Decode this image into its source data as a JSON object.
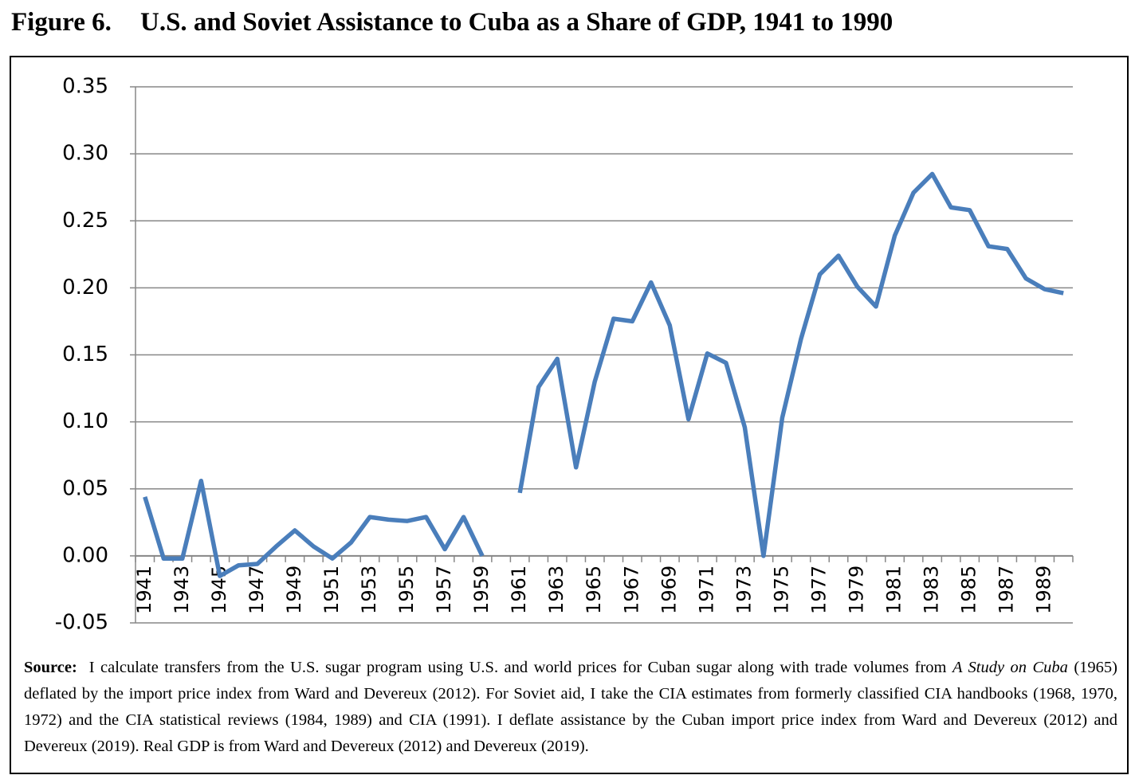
{
  "chart_data": {
    "type": "line",
    "figure_label": "Figure 6.",
    "title": "U.S. and Soviet Assistance to Cuba as a Share of GDP, 1941 to 1990",
    "categories": [
      "1941",
      null,
      "1943",
      null,
      "1945",
      null,
      "1947",
      null,
      "1949",
      null,
      "1951",
      null,
      "1953",
      null,
      "1955",
      null,
      "1957",
      null,
      "1959",
      null,
      "1961",
      null,
      "1963",
      null,
      "1965",
      null,
      "1967",
      null,
      "1969",
      null,
      "1971",
      null,
      "1973",
      null,
      "1975",
      null,
      "1977",
      null,
      "1979",
      null,
      "1981",
      null,
      "1983",
      null,
      "1985",
      null,
      "1987",
      null,
      "1989",
      null
    ],
    "series": [
      {
        "color": "#4a7ebb",
        "values": [
          0.044,
          -0.002,
          -0.002,
          0.056,
          -0.015,
          -0.007,
          -0.006,
          0.007,
          0.019,
          0.007,
          -0.002,
          0.01,
          0.029,
          0.027,
          0.026,
          0.029,
          0.005,
          0.029,
          0.0,
          null,
          0.047,
          0.126,
          0.147,
          0.066,
          0.13,
          0.177,
          0.175,
          0.204,
          0.172,
          0.102,
          0.151,
          0.144,
          0.096,
          0.0,
          0.103,
          0.162,
          0.21,
          0.224,
          0.201,
          0.186,
          0.239,
          0.271,
          0.285,
          0.26,
          0.258,
          0.231,
          0.229,
          0.207,
          0.199,
          0.196
        ]
      }
    ],
    "ylim": [
      -0.05,
      0.35
    ],
    "yticks": [
      -0.05,
      {
        "value": 0,
        "label": "0.00"
      },
      0.05,
      {
        "value": 0.1,
        "label": "0.10"
      },
      0.15,
      {
        "value": 0.2,
        "label": "0.20"
      },
      0.25,
      {
        "value": 0.3,
        "label": "0.30"
      },
      0.35
    ],
    "grid": true,
    "note": {
      "label": "Source:",
      "text_before": "I calculate transfers from the U.S. sugar program using U.S. and world prices for Cuban sugar along with trade volumes from ",
      "italic": "A Study on Cuba",
      "text_after": " (1965) deflated by the import price index from Ward and Devereux (2012). For Soviet aid, I take the CIA estimates from formerly classified CIA handbooks (1968, 1970, 1972) and the CIA statistical reviews (1984, 1989) and CIA (1991). I deflate assistance by the Cuban import price index from Ward and Devereux (2012) and Devereux (2019). Real GDP is from Ward and Devereux (2012) and Devereux (2019)."
    }
  }
}
